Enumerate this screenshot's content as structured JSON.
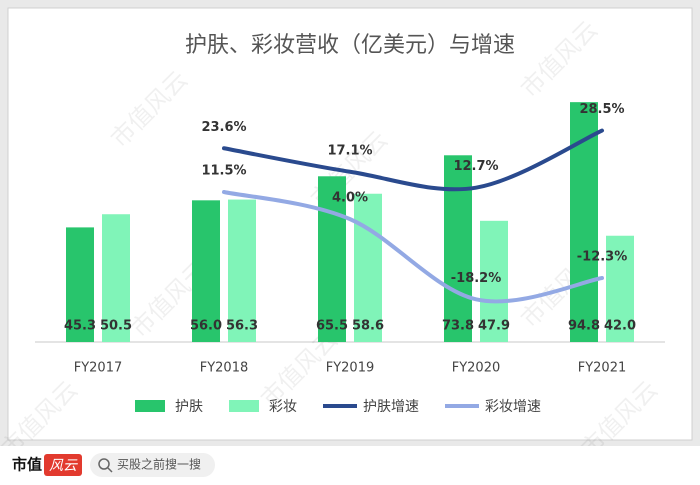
{
  "chart_data": {
    "type": "combo",
    "title": "护肤、彩妆营收（亿美元）与增速",
    "categories": [
      "FY2017",
      "FY2018",
      "FY2019",
      "FY2020",
      "FY2021"
    ],
    "series": [
      {
        "name": "护肤",
        "type": "bar",
        "color": "#28c56c",
        "values": [
          45.3,
          56.0,
          65.5,
          73.8,
          94.8
        ],
        "value_labels": [
          "45.3",
          "56.0",
          "65.5",
          "73.8",
          "94.8"
        ]
      },
      {
        "name": "彩妆",
        "type": "bar",
        "color": "#80f4b8",
        "values": [
          50.5,
          56.3,
          58.6,
          47.9,
          42.0
        ],
        "value_labels": [
          "50.5",
          "56.3",
          "58.6",
          "47.9",
          "42.0"
        ]
      },
      {
        "name": "护肤增速",
        "type": "line",
        "axis": "y2",
        "color": "#2a4a8e",
        "values": [
          null,
          23.6,
          17.1,
          12.7,
          28.5
        ],
        "value_labels": [
          null,
          "23.6%",
          "17.1%",
          "12.7%",
          "28.5%"
        ]
      },
      {
        "name": "彩妆增速",
        "type": "line",
        "axis": "y2",
        "color": "#93a9e4",
        "values": [
          null,
          11.5,
          4.0,
          -18.2,
          -12.3
        ],
        "value_labels": [
          null,
          "11.5%",
          "4.0%",
          "-18.2%",
          "-12.3%"
        ]
      }
    ],
    "ylim": [
      0,
      100
    ],
    "y2lim": [
      -30,
      40
    ],
    "legend": "bottom"
  },
  "watermark": "市值风云",
  "footer": {
    "brand": "市值",
    "logo": "风云",
    "search": "买股之前搜一搜"
  }
}
